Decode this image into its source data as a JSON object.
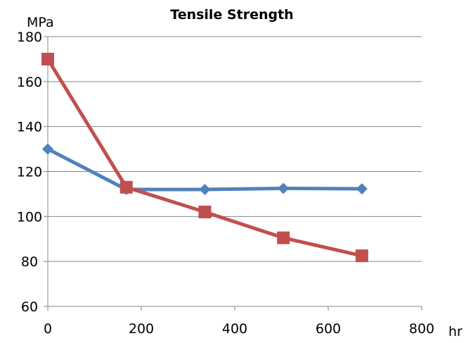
{
  "chart_data": {
    "type": "line",
    "title": "Tensile Strength",
    "ylabel": "MPa",
    "xlabel": "hr",
    "xlim": [
      0,
      800
    ],
    "ylim": [
      60,
      180
    ],
    "xticks": [
      "0",
      "200",
      "400",
      "600",
      "800"
    ],
    "yticks": [
      "60",
      "80",
      "100",
      "120",
      "140",
      "160",
      "180"
    ],
    "grid": "horizontal",
    "series": [
      {
        "color": "#4F81BD",
        "marker": "diamond",
        "x": [
          0,
          168,
          336,
          504,
          672
        ],
        "y": [
          130,
          112,
          112,
          112.5,
          112.3
        ]
      },
      {
        "color": "#C0504D",
        "marker": "square",
        "x": [
          0,
          168,
          336,
          504,
          672
        ],
        "y": [
          170,
          113,
          102,
          90.5,
          82.5
        ]
      }
    ]
  }
}
